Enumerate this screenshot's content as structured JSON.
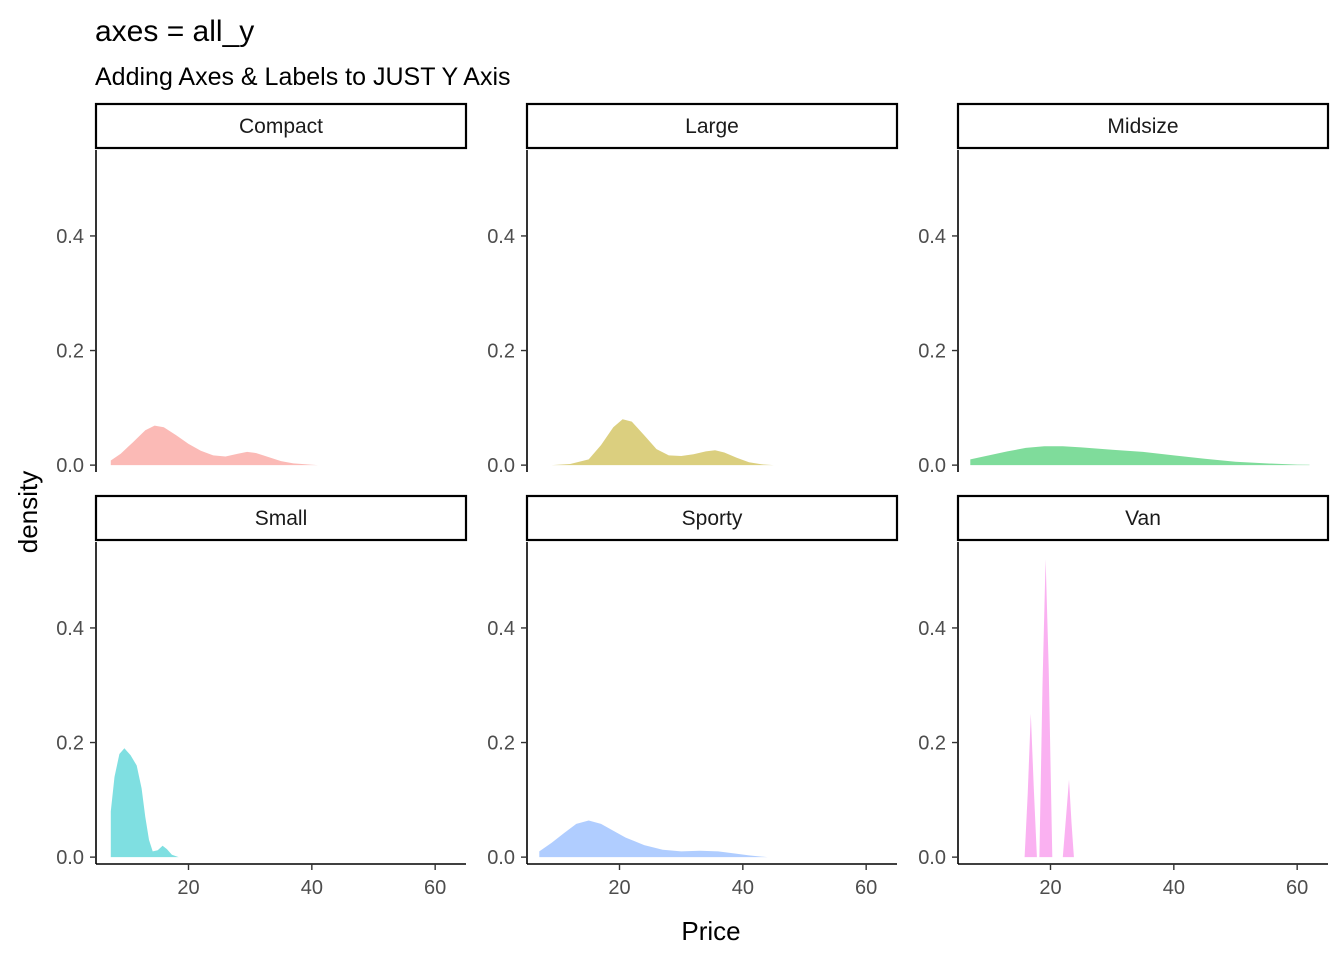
{
  "title": "axes = all_y",
  "subtitle": "Adding Axes & Labels to JUST Y Axis",
  "chart_data": {
    "type": "area",
    "subtype": "faceted density",
    "xlabel": "Price",
    "ylabel": "density",
    "xlim": [
      5,
      65
    ],
    "ylim": [
      -0.012,
      0.55
    ],
    "x_ticks": [
      20,
      40,
      60
    ],
    "y_ticks": [
      0.0,
      0.2,
      0.4
    ],
    "x_tick_labels": [
      "20",
      "40",
      "60"
    ],
    "y_tick_labels": [
      "0.0",
      "0.2",
      "0.4"
    ],
    "grid": false,
    "legend": "none",
    "facet_layout": {
      "rows": 2,
      "cols": 3
    },
    "facets": [
      {
        "label": "Compact",
        "color": "#F8766D",
        "points": [
          [
            7.4,
            0.008
          ],
          [
            9,
            0.02
          ],
          [
            11,
            0.04
          ],
          [
            13,
            0.061
          ],
          [
            14.5,
            0.069
          ],
          [
            16,
            0.066
          ],
          [
            18,
            0.052
          ],
          [
            20,
            0.037
          ],
          [
            22,
            0.025
          ],
          [
            24,
            0.017
          ],
          [
            26,
            0.015
          ],
          [
            28,
            0.02
          ],
          [
            29.5,
            0.023
          ],
          [
            31,
            0.021
          ],
          [
            33,
            0.014
          ],
          [
            35,
            0.007
          ],
          [
            37,
            0.003
          ],
          [
            40,
            0.0008
          ],
          [
            41,
            0.0
          ]
        ]
      },
      {
        "label": "Large",
        "color": "#B79F00",
        "points": [
          [
            9,
            0.0
          ],
          [
            12,
            0.002
          ],
          [
            15,
            0.01
          ],
          [
            17,
            0.035
          ],
          [
            19,
            0.066
          ],
          [
            20.5,
            0.08
          ],
          [
            22,
            0.076
          ],
          [
            24,
            0.052
          ],
          [
            26,
            0.028
          ],
          [
            28,
            0.017
          ],
          [
            30,
            0.016
          ],
          [
            32,
            0.019
          ],
          [
            34,
            0.024
          ],
          [
            35.5,
            0.026
          ],
          [
            37,
            0.022
          ],
          [
            39,
            0.013
          ],
          [
            41,
            0.005
          ],
          [
            43,
            0.0015
          ],
          [
            45,
            0.0
          ]
        ]
      },
      {
        "label": "Midsize",
        "color": "#00BA38",
        "points": [
          [
            7,
            0.01
          ],
          [
            10,
            0.017
          ],
          [
            13,
            0.024
          ],
          [
            16,
            0.03
          ],
          [
            19,
            0.033
          ],
          [
            22,
            0.033
          ],
          [
            25,
            0.031
          ],
          [
            30,
            0.027
          ],
          [
            35,
            0.023
          ],
          [
            40,
            0.017
          ],
          [
            45,
            0.011
          ],
          [
            50,
            0.006
          ],
          [
            55,
            0.003
          ],
          [
            60,
            0.001
          ],
          [
            62,
            0.0005
          ]
        ]
      },
      {
        "label": "Small",
        "color": "#00BFC4",
        "points": [
          [
            7.4,
            0.08
          ],
          [
            8,
            0.14
          ],
          [
            8.8,
            0.18
          ],
          [
            9.6,
            0.19
          ],
          [
            10.6,
            0.178
          ],
          [
            11.6,
            0.16
          ],
          [
            12.4,
            0.12
          ],
          [
            13,
            0.07
          ],
          [
            13.6,
            0.03
          ],
          [
            14.2,
            0.01
          ],
          [
            15,
            0.012
          ],
          [
            15.8,
            0.02
          ],
          [
            16.5,
            0.014
          ],
          [
            17.3,
            0.004
          ],
          [
            18.4,
            0.0
          ]
        ]
      },
      {
        "label": "Sporty",
        "color": "#619CFF",
        "points": [
          [
            7,
            0.01
          ],
          [
            9,
            0.025
          ],
          [
            11,
            0.042
          ],
          [
            13,
            0.058
          ],
          [
            15,
            0.064
          ],
          [
            17,
            0.058
          ],
          [
            19,
            0.046
          ],
          [
            21,
            0.034
          ],
          [
            24,
            0.021
          ],
          [
            27,
            0.013
          ],
          [
            30,
            0.01
          ],
          [
            33,
            0.011
          ],
          [
            36,
            0.01
          ],
          [
            39,
            0.006
          ],
          [
            41,
            0.003
          ],
          [
            43,
            0.001
          ],
          [
            44,
            0.0
          ]
        ]
      },
      {
        "label": "Van",
        "color": "#F564E3",
        "points": [
          [
            15.8,
            0.0
          ],
          [
            16.3,
            0.11
          ],
          [
            16.8,
            0.25
          ],
          [
            17.3,
            0.12
          ],
          [
            17.8,
            0.0
          ],
          [
            18.2,
            0.0
          ],
          [
            18.7,
            0.3
          ],
          [
            19.2,
            0.52
          ],
          [
            19.7,
            0.33
          ],
          [
            20.3,
            0.0
          ],
          [
            22,
            0.0
          ],
          [
            22.6,
            0.08
          ],
          [
            23,
            0.135
          ],
          [
            23.4,
            0.06
          ],
          [
            23.8,
            0.0
          ]
        ]
      }
    ]
  }
}
